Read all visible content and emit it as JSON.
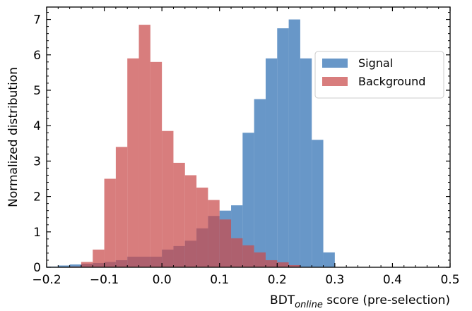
{
  "chart_data": {
    "type": "histogram",
    "xlabel": {
      "main": "BDT",
      "subscript": "online",
      "suffix": " score (pre-selection)"
    },
    "ylabel": "Normalized distribution",
    "xlim": [
      -0.2,
      0.5
    ],
    "ylim": [
      0,
      7.35
    ],
    "x_ticks": [
      -0.2,
      -0.1,
      0.0,
      0.1,
      0.2,
      0.3,
      0.4,
      0.5
    ],
    "x_tick_labels": [
      "−0.2",
      "−0.1",
      "0.0",
      "0.1",
      "0.2",
      "0.3",
      "0.4",
      "0.5"
    ],
    "y_ticks": [
      0,
      1,
      2,
      3,
      4,
      5,
      6,
      7
    ],
    "y_tick_labels": [
      "0",
      "1",
      "2",
      "3",
      "4",
      "5",
      "6",
      "7"
    ],
    "grid": false,
    "legend_position": "upper right",
    "bin_edges": [
      -0.2,
      -0.18,
      -0.16,
      -0.14,
      -0.12,
      -0.1,
      -0.08,
      -0.06,
      -0.04,
      -0.02,
      0.0,
      0.02,
      0.04,
      0.06,
      0.08,
      0.1,
      0.12,
      0.14,
      0.16,
      0.18,
      0.2,
      0.22,
      0.24,
      0.26,
      0.28,
      0.3,
      0.32
    ],
    "series": [
      {
        "name": "Signal",
        "color": "#3d7ab8",
        "opacity": 0.78,
        "values": [
          0.02,
          0.05,
          0.08,
          0.1,
          0.12,
          0.15,
          0.2,
          0.3,
          0.3,
          0.3,
          0.5,
          0.6,
          0.75,
          1.1,
          1.45,
          1.6,
          1.75,
          3.8,
          4.75,
          5.9,
          6.75,
          7.0,
          5.9,
          3.6,
          0.42,
          0.0
        ]
      },
      {
        "name": "Background",
        "color": "#c94b4b",
        "opacity": 0.72,
        "values": [
          0.0,
          0.0,
          0.02,
          0.15,
          0.5,
          2.5,
          3.4,
          5.9,
          6.85,
          5.8,
          3.85,
          2.95,
          2.6,
          2.25,
          1.9,
          1.35,
          0.82,
          0.62,
          0.42,
          0.2,
          0.14,
          0.06,
          0.0,
          0.0,
          0.0,
          0.0
        ]
      }
    ]
  }
}
